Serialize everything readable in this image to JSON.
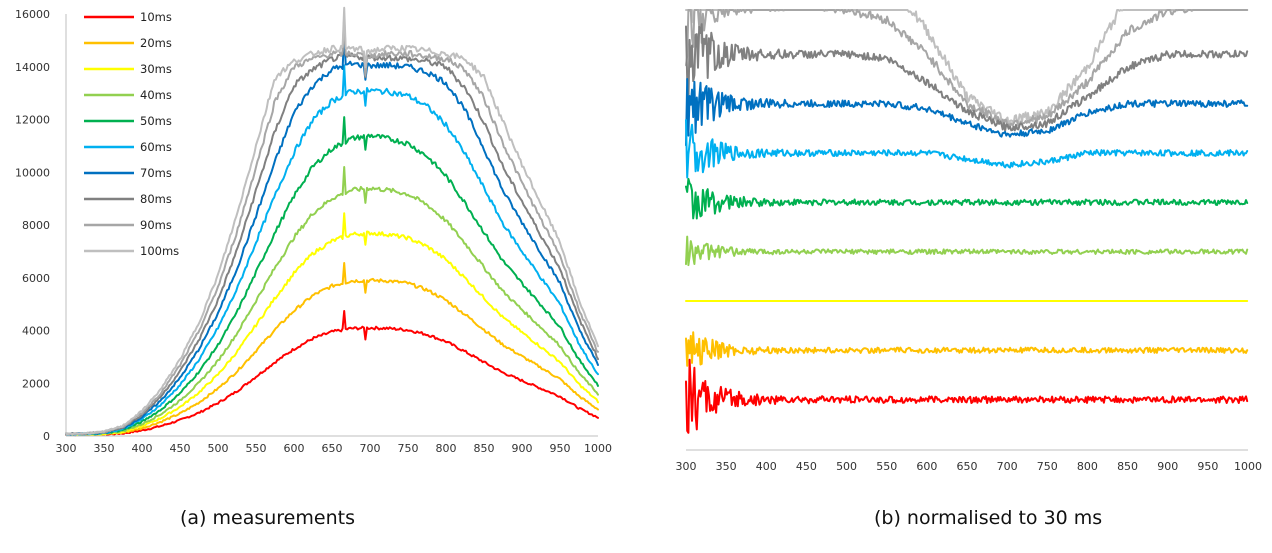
{
  "chart_data": [
    {
      "type": "line",
      "caption": "(a) measurements",
      "xlim": [
        300,
        1000
      ],
      "ylim": [
        0,
        16000
      ],
      "x_ticks": [
        "300",
        "350",
        "400",
        "450",
        "500",
        "550",
        "600",
        "650",
        "700",
        "750",
        "800",
        "850",
        "900",
        "950",
        "1000"
      ],
      "y_ticks": [
        "0",
        "2000",
        "4000",
        "6000",
        "8000",
        "10000",
        "12000",
        "14000",
        "16000"
      ],
      "legend_position": "top-left",
      "grid": false,
      "x": [
        300,
        325,
        350,
        375,
        400,
        425,
        450,
        475,
        500,
        525,
        550,
        575,
        600,
        625,
        650,
        675,
        700,
        725,
        750,
        775,
        800,
        825,
        850,
        875,
        900,
        925,
        950,
        975,
        1000
      ],
      "series": [
        {
          "name": "10ms",
          "color": "#ff0000",
          "values": [
            40,
            45,
            55,
            100,
            210,
            380,
            600,
            880,
            1250,
            1700,
            2250,
            2800,
            3300,
            3700,
            3950,
            4080,
            4100,
            4080,
            4020,
            3850,
            3580,
            3200,
            2800,
            2400,
            2100,
            1800,
            1500,
            1050,
            700
          ]
        },
        {
          "name": "20ms",
          "color": "#ffc000",
          "values": [
            50,
            55,
            70,
            130,
            290,
            540,
            850,
            1270,
            1800,
            2450,
            3230,
            4030,
            4750,
            5330,
            5690,
            5880,
            5900,
            5880,
            5790,
            5540,
            5150,
            4610,
            4030,
            3460,
            3020,
            2590,
            2160,
            1510,
            1010
          ]
        },
        {
          "name": "30ms",
          "color": "#ffff00",
          "values": [
            55,
            60,
            80,
            160,
            370,
            680,
            1100,
            1650,
            2330,
            3190,
            4210,
            5230,
            6170,
            6930,
            7390,
            7640,
            7700,
            7640,
            7510,
            7190,
            6690,
            5990,
            5240,
            4490,
            3930,
            3370,
            2810,
            1960,
            1310
          ]
        },
        {
          "name": "40ms",
          "color": "#92d050",
          "values": [
            60,
            70,
            95,
            190,
            450,
            830,
            1340,
            2010,
            2850,
            3890,
            5130,
            6380,
            7530,
            8450,
            9010,
            9320,
            9400,
            9320,
            9170,
            8770,
            8160,
            7310,
            6390,
            5480,
            4790,
            4110,
            3420,
            2390,
            1600
          ]
        },
        {
          "name": "50ms",
          "color": "#00b050",
          "values": [
            65,
            75,
            105,
            230,
            540,
            1000,
            1620,
            2440,
            3450,
            4700,
            6200,
            7710,
            9100,
            10220,
            10890,
            11270,
            11400,
            11270,
            11090,
            10610,
            9860,
            8840,
            7730,
            6630,
            5790,
            4970,
            4140,
            2890,
            1930
          ]
        },
        {
          "name": "60ms",
          "color": "#00b0f0",
          "values": [
            70,
            80,
            120,
            270,
            640,
            1190,
            1930,
            2890,
            4100,
            5570,
            7350,
            9120,
            10750,
            12000,
            12700,
            13050,
            13100,
            13050,
            12900,
            12500,
            11800,
            10700,
            9400,
            8050,
            7000,
            6000,
            5000,
            3500,
            2300
          ]
        },
        {
          "name": "70ms",
          "color": "#0070c0",
          "values": [
            75,
            85,
            130,
            300,
            720,
            1350,
            2200,
            3300,
            4650,
            6350,
            8350,
            10400,
            12250,
            13300,
            13900,
            14100,
            14050,
            14050,
            14000,
            13800,
            13400,
            12350,
            10900,
            9300,
            8100,
            6950,
            5800,
            4050,
            2700
          ]
        },
        {
          "name": "80ms",
          "color": "#808080",
          "values": [
            80,
            90,
            140,
            330,
            800,
            1500,
            2450,
            3650,
            5150,
            7050,
            9300,
            11550,
            13300,
            13900,
            14300,
            14400,
            14350,
            14350,
            14300,
            14200,
            14000,
            13200,
            11900,
            10200,
            8900,
            7600,
            6350,
            4450,
            2950
          ]
        },
        {
          "name": "90ms",
          "color": "#a6a6a6",
          "values": [
            85,
            95,
            150,
            360,
            870,
            1630,
            2680,
            3980,
            5650,
            7750,
            10200,
            12700,
            14000,
            14300,
            14500,
            14500,
            14400,
            14500,
            14500,
            14400,
            14300,
            13900,
            12800,
            11100,
            9600,
            8200,
            6850,
            4800,
            3150
          ]
        },
        {
          "name": "100ms",
          "color": "#bfbfbf",
          "values": [
            90,
            100,
            160,
            390,
            950,
            1780,
            2900,
            4300,
            6100,
            8400,
            11000,
            13600,
            14200,
            14500,
            14700,
            14700,
            14600,
            14700,
            14700,
            14600,
            14500,
            14300,
            13600,
            11900,
            10300,
            8800,
            7350,
            5150,
            3400
          ]
        }
      ]
    },
    {
      "type": "line",
      "caption": "(b) normalised to 30 ms",
      "xlim": [
        300,
        1000
      ],
      "x_ticks": [
        "300",
        "350",
        "400",
        "450",
        "500",
        "550",
        "600",
        "650",
        "700",
        "750",
        "800",
        "850",
        "900",
        "950",
        "1000"
      ],
      "grid": false,
      "x": [
        300,
        350,
        400,
        450,
        500,
        550,
        600,
        650,
        700,
        750,
        800,
        850,
        900,
        950,
        1000
      ],
      "series": [
        {
          "name": "10ms",
          "color": "#ff0000",
          "noise": 0.09,
          "values": [
            0.333,
            0.333,
            0.333,
            0.333,
            0.333,
            0.333,
            0.333,
            0.333,
            0.333,
            0.333,
            0.333,
            0.333,
            0.333,
            0.333,
            0.333
          ]
        },
        {
          "name": "20ms",
          "color": "#ffc000",
          "noise": 0.05,
          "values": [
            0.667,
            0.667,
            0.667,
            0.667,
            0.667,
            0.667,
            0.667,
            0.667,
            0.667,
            0.667,
            0.667,
            0.667,
            0.667,
            0.667,
            0.667
          ]
        },
        {
          "name": "30ms",
          "color": "#ffff00",
          "noise": 0.0,
          "values": [
            1,
            1,
            1,
            1,
            1,
            1,
            1,
            1,
            1,
            1,
            1,
            1,
            1,
            1,
            1
          ]
        },
        {
          "name": "40ms",
          "color": "#92d050",
          "noise": 0.03,
          "values": [
            1.333,
            1.333,
            1.333,
            1.333,
            1.333,
            1.333,
            1.333,
            1.333,
            1.333,
            1.333,
            1.333,
            1.333,
            1.333,
            1.333,
            1.333
          ]
        },
        {
          "name": "50ms",
          "color": "#00b050",
          "noise": 0.06,
          "values": [
            1.667,
            1.667,
            1.667,
            1.667,
            1.667,
            1.667,
            1.667,
            1.667,
            1.667,
            1.667,
            1.667,
            1.667,
            1.667,
            1.667,
            1.667
          ]
        },
        {
          "name": "60ms",
          "color": "#00b0f0",
          "noise": 0.07,
          "values": [
            2.0,
            2.0,
            2.0,
            2.0,
            2.0,
            2.0,
            2.0,
            1.96,
            1.92,
            1.94,
            2.0,
            2.0,
            2.0,
            2.0,
            2.0
          ]
        },
        {
          "name": "70ms",
          "color": "#0070c0",
          "noise": 0.09,
          "values": [
            2.333,
            2.333,
            2.333,
            2.333,
            2.333,
            2.333,
            2.3,
            2.2,
            2.12,
            2.15,
            2.27,
            2.333,
            2.333,
            2.333,
            2.333
          ]
        },
        {
          "name": "80ms",
          "color": "#808080",
          "noise": 0.11,
          "values": [
            2.667,
            2.667,
            2.667,
            2.667,
            2.667,
            2.64,
            2.48,
            2.28,
            2.17,
            2.2,
            2.38,
            2.58,
            2.667,
            2.667,
            2.667
          ]
        },
        {
          "name": "90ms",
          "color": "#a6a6a6",
          "noise": 0.14,
          "values": [
            3.0,
            3.0,
            3.0,
            3.0,
            2.97,
            2.9,
            2.67,
            2.33,
            2.2,
            2.24,
            2.48,
            2.82,
            2.96,
            3.0,
            3.0
          ]
        },
        {
          "name": "100ms",
          "color": "#bfbfbf",
          "noise": 0.2,
          "values": [
            3.333,
            3.333,
            3.333,
            3.333,
            3.3,
            3.18,
            2.83,
            2.38,
            2.22,
            2.27,
            2.58,
            3.06,
            3.28,
            3.32,
            3.333
          ]
        }
      ]
    }
  ]
}
